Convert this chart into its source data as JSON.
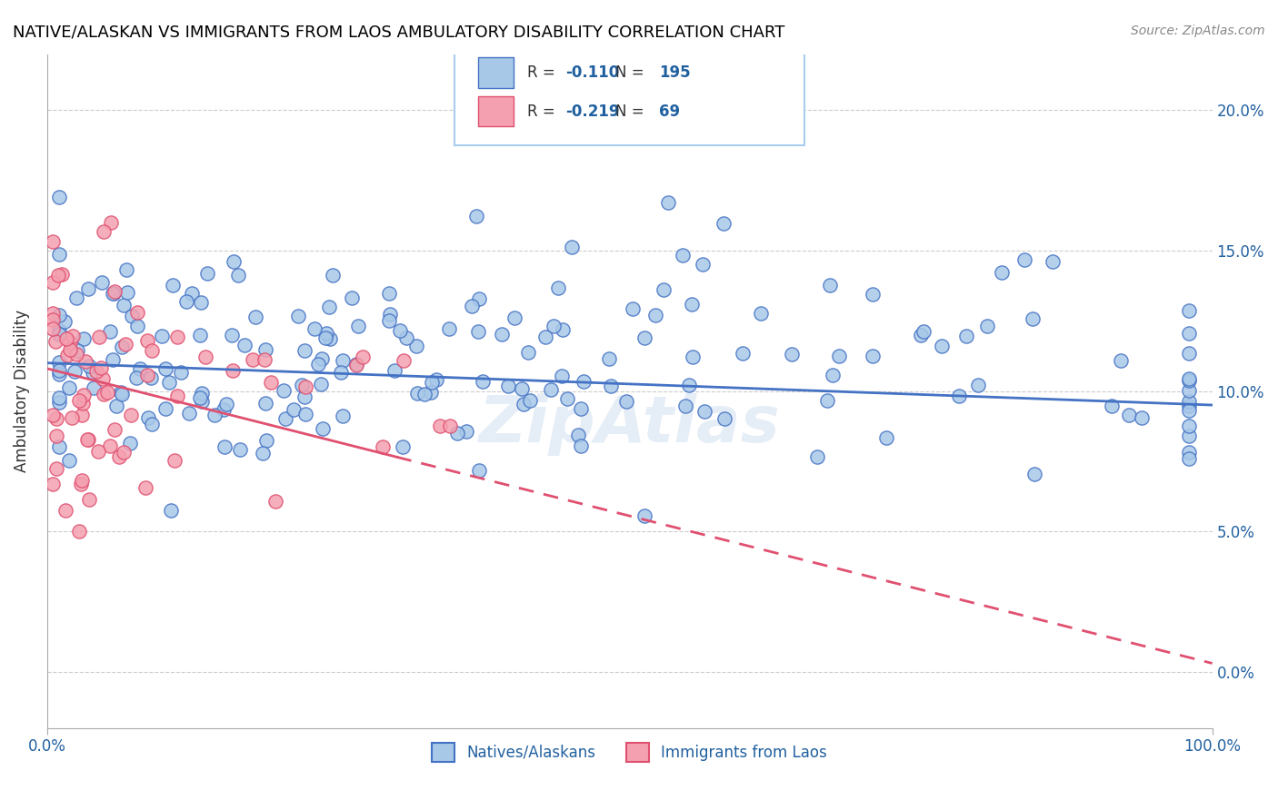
{
  "title": "NATIVE/ALASKAN VS IMMIGRANTS FROM LAOS AMBULATORY DISABILITY CORRELATION CHART",
  "source": "Source: ZipAtlas.com",
  "ylabel": "Ambulatory Disability",
  "xlim": [
    0,
    100
  ],
  "ylim": [
    -2,
    22
  ],
  "yticks": [
    0,
    5,
    10,
    15,
    20
  ],
  "ytick_labels": [
    "0.0%",
    "5.0%",
    "10.0%",
    "15.0%",
    "20.0%"
  ],
  "xtick_labels": [
    "0.0%",
    "100.0%"
  ],
  "blue_R": -0.11,
  "blue_N": 195,
  "pink_R": -0.219,
  "pink_N": 69,
  "blue_color": "#a8c8e8",
  "pink_color": "#f4a0b0",
  "blue_line_color": "#4472c4",
  "pink_line_color": "#e05070",
  "legend_label_blue": "Natives/Alaskans",
  "legend_label_pink": "Immigrants from Laos",
  "watermark": "ZipAtlas",
  "title_color": "#000000",
  "axis_color": "#2060a0",
  "grid_color": "#cccccc",
  "background_color": "#ffffff"
}
